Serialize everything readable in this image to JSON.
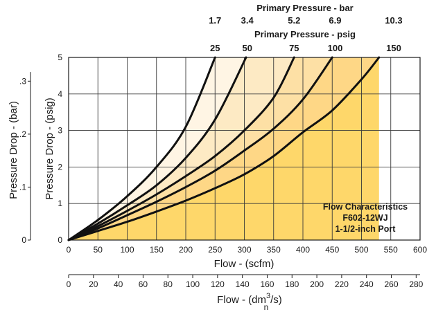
{
  "chart_data": {
    "type": "line",
    "title_lines": [
      "Flow Characteristics",
      "F602-12WJ",
      "1-1/2-inch Port"
    ],
    "xlabel": "Flow - (scfm)",
    "xlim": [
      0,
      600
    ],
    "x_ticks": [
      0,
      50,
      100,
      150,
      200,
      250,
      300,
      350,
      400,
      450,
      500,
      550,
      600
    ],
    "ylabel": "Pressure Drop - (psig)",
    "ylim": [
      0,
      5
    ],
    "y_ticks": [
      0,
      1,
      2,
      3,
      4,
      5
    ],
    "grid": true,
    "secondary_y": {
      "label": "Pressure Drop - (bar)",
      "ticks": [
        {
          "label": "0",
          "psig": 0
        },
        {
          "label": ".1",
          "psig": 1.45
        },
        {
          "label": ".2",
          "psig": 2.9
        },
        {
          "label": ".3",
          "psig": 4.35
        }
      ]
    },
    "secondary_x": {
      "label_main": "Flow - (dm",
      "label_sup": "3",
      "label_end": "/s)",
      "label_sub": "n",
      "ticks": [
        0,
        20,
        40,
        60,
        80,
        100,
        120,
        140,
        160,
        180,
        200,
        220,
        240,
        260,
        280
      ],
      "scfm_per_unit": 2.1189
    },
    "top_psig": {
      "label": "Primary Pressure - psig",
      "ticks": [
        {
          "label": "25",
          "x": 250
        },
        {
          "label": "50",
          "x": 305
        },
        {
          "label": "75",
          "x": 385
        },
        {
          "label": "100",
          "x": 455
        },
        {
          "label": "150",
          "x": 555
        }
      ]
    },
    "top_bar": {
      "label": "Primary Pressure - bar",
      "ticks": [
        {
          "label": "1.7",
          "x": 250
        },
        {
          "label": "3.4",
          "x": 305
        },
        {
          "label": "5.2",
          "x": 385
        },
        {
          "label": "6.9",
          "x": 455
        },
        {
          "label": "10.3",
          "x": 555
        }
      ]
    },
    "series": [
      {
        "x": [
          0,
          50,
          100,
          150,
          200,
          250
        ],
        "y": [
          0,
          0.55,
          1.2,
          2.0,
          3.1,
          5.0
        ]
      },
      {
        "x": [
          0,
          50,
          100,
          150,
          200,
          250,
          303
        ],
        "y": [
          0,
          0.45,
          0.95,
          1.5,
          2.25,
          3.3,
          5.0
        ]
      },
      {
        "x": [
          0,
          50,
          100,
          150,
          200,
          250,
          300,
          350,
          385
        ],
        "y": [
          0,
          0.38,
          0.8,
          1.25,
          1.75,
          2.3,
          3.0,
          3.9,
          5.0
        ]
      },
      {
        "x": [
          0,
          50,
          100,
          150,
          200,
          250,
          300,
          350,
          400,
          450
        ],
        "y": [
          0,
          0.32,
          0.68,
          1.05,
          1.45,
          1.9,
          2.45,
          3.05,
          3.85,
          5.0
        ]
      },
      {
        "x": [
          0,
          50,
          100,
          150,
          200,
          250,
          300,
          350,
          400,
          450,
          500,
          530
        ],
        "y": [
          0,
          0.25,
          0.5,
          0.78,
          1.08,
          1.42,
          1.8,
          2.3,
          2.95,
          3.55,
          4.4,
          5.0
        ]
      }
    ],
    "fill_colors": [
      "#fff5e4",
      "#fdeac4",
      "#fde0a5",
      "#fed786",
      "#fed76a"
    ]
  }
}
